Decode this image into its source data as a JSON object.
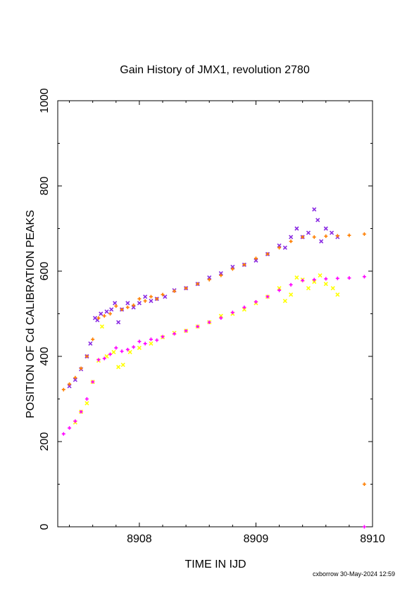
{
  "chart_data": {
    "type": "scatter",
    "title": "Gain History of JMX1, revolution 2780",
    "xlabel": "TIME IN IJD",
    "ylabel": "POSITION OF Cd CALIBRATION PEAKS",
    "xlim": [
      8907.3,
      8910.0
    ],
    "ylim": [
      0,
      1000
    ],
    "x_ticks": [
      8908,
      8909,
      8910
    ],
    "y_ticks": [
      0,
      200,
      400,
      600,
      800,
      1000
    ],
    "grid": false,
    "legend": "none",
    "colors": {
      "purple": "#8a2be2",
      "orange": "#ff7f00",
      "yellow": "#ffff00",
      "magenta": "#ff00ff"
    },
    "series": [
      {
        "marker": "x",
        "color": "#8a2be2",
        "points": [
          [
            8907.4,
            330
          ],
          [
            8907.45,
            345
          ],
          [
            8907.5,
            370
          ],
          [
            8907.55,
            400
          ],
          [
            8907.58,
            430
          ],
          [
            8907.62,
            490
          ],
          [
            8907.64,
            485
          ],
          [
            8907.67,
            500
          ],
          [
            8907.72,
            505
          ],
          [
            8907.76,
            510
          ],
          [
            8907.79,
            525
          ],
          [
            8907.82,
            480
          ],
          [
            8907.85,
            510
          ],
          [
            8907.9,
            525
          ],
          [
            8907.95,
            515
          ],
          [
            8908.0,
            525
          ],
          [
            8908.05,
            540
          ],
          [
            8908.1,
            530
          ],
          [
            8908.15,
            535
          ],
          [
            8908.22,
            540
          ],
          [
            8908.3,
            555
          ],
          [
            8908.4,
            560
          ],
          [
            8908.5,
            570
          ],
          [
            8908.6,
            585
          ],
          [
            8908.7,
            595
          ],
          [
            8908.8,
            610
          ],
          [
            8908.9,
            615
          ],
          [
            8909.0,
            625
          ],
          [
            8909.1,
            640
          ],
          [
            8909.2,
            660
          ],
          [
            8909.25,
            655
          ],
          [
            8909.3,
            680
          ],
          [
            8909.35,
            700
          ],
          [
            8909.4,
            680
          ],
          [
            8909.45,
            690
          ],
          [
            8909.5,
            745
          ],
          [
            8909.53,
            720
          ],
          [
            8909.56,
            670
          ],
          [
            8909.6,
            700
          ],
          [
            8909.65,
            690
          ],
          [
            8909.7,
            680
          ]
        ]
      },
      {
        "marker": "x",
        "color": "#ffff00",
        "points": [
          [
            8907.45,
            245
          ],
          [
            8907.5,
            270
          ],
          [
            8907.55,
            290
          ],
          [
            8907.6,
            340
          ],
          [
            8907.65,
            390
          ],
          [
            8907.68,
            470
          ],
          [
            8907.72,
            400
          ],
          [
            8907.78,
            410
          ],
          [
            8907.82,
            375
          ],
          [
            8907.86,
            380
          ],
          [
            8907.92,
            410
          ],
          [
            8908.0,
            420
          ],
          [
            8908.1,
            430
          ],
          [
            8908.2,
            445
          ],
          [
            8908.3,
            455
          ],
          [
            8908.4,
            460
          ],
          [
            8908.5,
            470
          ],
          [
            8908.6,
            480
          ],
          [
            8908.7,
            495
          ],
          [
            8908.8,
            500
          ],
          [
            8908.9,
            510
          ],
          [
            8909.0,
            525
          ],
          [
            8909.1,
            540
          ],
          [
            8909.2,
            560
          ],
          [
            8909.25,
            530
          ],
          [
            8909.3,
            545
          ],
          [
            8909.35,
            585
          ],
          [
            8909.4,
            580
          ],
          [
            8909.45,
            560
          ],
          [
            8909.5,
            575
          ],
          [
            8909.55,
            590
          ],
          [
            8909.6,
            570
          ],
          [
            8909.66,
            560
          ],
          [
            8909.7,
            545
          ]
        ]
      },
      {
        "marker": "+",
        "color": "#ff7f00",
        "points": [
          [
            8907.35,
            322
          ],
          [
            8907.4,
            335
          ],
          [
            8907.45,
            350
          ],
          [
            8907.5,
            372
          ],
          [
            8907.55,
            400
          ],
          [
            8907.6,
            440
          ],
          [
            8907.65,
            490
          ],
          [
            8907.7,
            495
          ],
          [
            8907.75,
            500
          ],
          [
            8907.8,
            518
          ],
          [
            8907.85,
            510
          ],
          [
            8907.9,
            515
          ],
          [
            8907.95,
            520
          ],
          [
            8908.0,
            535
          ],
          [
            8908.05,
            530
          ],
          [
            8908.1,
            540
          ],
          [
            8908.15,
            535
          ],
          [
            8908.2,
            545
          ],
          [
            8908.3,
            553
          ],
          [
            8908.4,
            560
          ],
          [
            8908.5,
            570
          ],
          [
            8908.6,
            580
          ],
          [
            8908.7,
            590
          ],
          [
            8908.8,
            605
          ],
          [
            8908.9,
            615
          ],
          [
            8909.0,
            630
          ],
          [
            8909.1,
            640
          ],
          [
            8909.2,
            655
          ],
          [
            8909.3,
            670
          ],
          [
            8909.4,
            680
          ],
          [
            8909.5,
            680
          ],
          [
            8909.6,
            682
          ],
          [
            8909.7,
            683
          ],
          [
            8909.8,
            684
          ],
          [
            8909.93,
            687
          ],
          [
            8909.93,
            100
          ]
        ]
      },
      {
        "marker": "+",
        "color": "#ff00ff",
        "points": [
          [
            8907.35,
            218
          ],
          [
            8907.4,
            232
          ],
          [
            8907.45,
            248
          ],
          [
            8907.5,
            270
          ],
          [
            8907.55,
            300
          ],
          [
            8907.6,
            340
          ],
          [
            8907.65,
            392
          ],
          [
            8907.7,
            395
          ],
          [
            8907.75,
            405
          ],
          [
            8907.8,
            420
          ],
          [
            8907.85,
            412
          ],
          [
            8907.9,
            416
          ],
          [
            8907.95,
            422
          ],
          [
            8908.0,
            435
          ],
          [
            8908.05,
            430
          ],
          [
            8908.1,
            440
          ],
          [
            8908.15,
            438
          ],
          [
            8908.2,
            446
          ],
          [
            8908.3,
            453
          ],
          [
            8908.4,
            460
          ],
          [
            8908.5,
            470
          ],
          [
            8908.6,
            480
          ],
          [
            8908.7,
            490
          ],
          [
            8908.8,
            503
          ],
          [
            8908.9,
            515
          ],
          [
            8909.0,
            528
          ],
          [
            8909.1,
            540
          ],
          [
            8909.2,
            555
          ],
          [
            8909.3,
            568
          ],
          [
            8909.4,
            578
          ],
          [
            8909.5,
            580
          ],
          [
            8909.6,
            582
          ],
          [
            8909.7,
            583
          ],
          [
            8909.8,
            584
          ],
          [
            8909.93,
            587
          ],
          [
            8909.93,
            0
          ]
        ]
      }
    ]
  },
  "footer": "cxborrow 30-May-2024 12:59"
}
